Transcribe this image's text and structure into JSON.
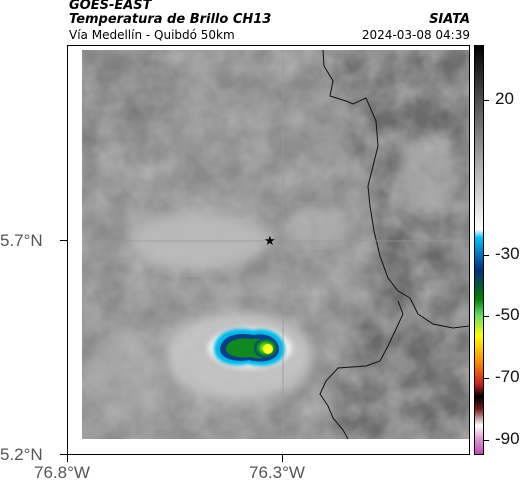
{
  "header": {
    "satellite": "GOES-EAST",
    "product": "Temperatura de Brillo CH13",
    "region": "Vía Medellín - Quibdó 50km",
    "organization": "SIATA",
    "datetime": "2024-03-08 04:39"
  },
  "map": {
    "lat_ticks": [
      {
        "label": "5.7°N",
        "value": 5.7
      },
      {
        "label": "5.2°N",
        "value": 5.2
      }
    ],
    "lon_ticks": [
      {
        "label": "76.8°W",
        "value": -76.8
      },
      {
        "label": "76.3°W",
        "value": -76.3
      }
    ],
    "marker": {
      "name": "star-marker",
      "symbol": "★"
    },
    "background_color": "#8a8a8a",
    "cloud_core_color": "#2a8a2a"
  },
  "colorbar": {
    "labels": [
      {
        "text": "20",
        "value": 20
      },
      {
        "text": "-30",
        "value": -30
      },
      {
        "text": "-50",
        "value": -50
      },
      {
        "text": "-70",
        "value": -70
      },
      {
        "text": "-90",
        "value": -90
      }
    ],
    "range": [
      -95,
      38
    ],
    "colors": [
      "#c04ab0",
      "#e0a0d8",
      "#ffffff",
      "#7a1a1a",
      "#000000",
      "#c02020",
      "#ff8000",
      "#ffff00",
      "#60e060",
      "#008000",
      "#003080",
      "#00c0ff",
      "#ffffff",
      "#b0b0b0",
      "#000000"
    ]
  }
}
